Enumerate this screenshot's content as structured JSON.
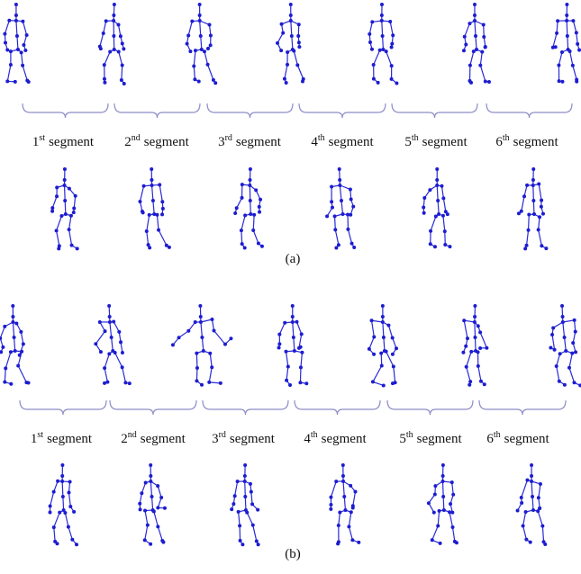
{
  "panels": [
    {
      "caption": "(a)",
      "segments": [
        {
          "number": "1",
          "suffix": "st",
          "word": "segment"
        },
        {
          "number": "2",
          "suffix": "nd",
          "word": "segment"
        },
        {
          "number": "3",
          "suffix": "rd",
          "word": "segment"
        },
        {
          "number": "4",
          "suffix": "th",
          "word": "segment"
        },
        {
          "number": "5",
          "suffix": "th",
          "word": "segment"
        },
        {
          "number": "6",
          "suffix": "th",
          "word": "segment"
        }
      ]
    },
    {
      "caption": "(b)",
      "segments": [
        {
          "number": "1",
          "suffix": "st",
          "word": "segment"
        },
        {
          "number": "2",
          "suffix": "nd",
          "word": "segment"
        },
        {
          "number": "3",
          "suffix": "rd",
          "word": "segment"
        },
        {
          "number": "4",
          "suffix": "th",
          "word": "segment"
        },
        {
          "number": "5",
          "suffix": "th",
          "word": "segment"
        },
        {
          "number": "6",
          "suffix": "th",
          "word": "segment"
        }
      ]
    }
  ]
}
